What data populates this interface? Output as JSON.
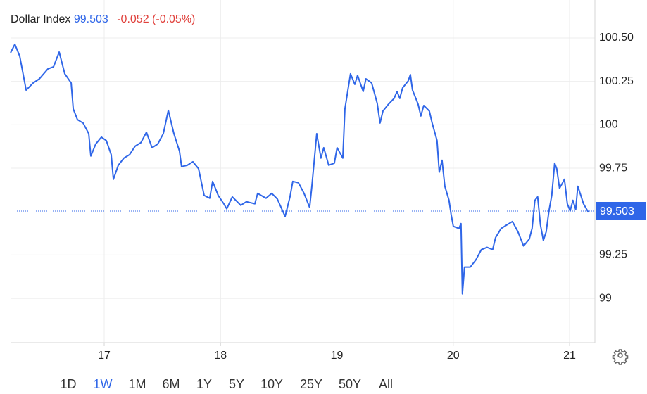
{
  "chart_data": {
    "type": "line",
    "name": "Dollar Index",
    "price": 99.503,
    "change": "-0.052 (-0.05%)",
    "color": "#2f66e8",
    "label_color": "#2f66e8",
    "x": [
      16.195,
      16.232,
      16.274,
      16.329,
      16.389,
      16.443,
      16.516,
      16.564,
      16.613,
      16.661,
      16.716,
      16.734,
      16.77,
      16.819,
      16.867,
      16.885,
      16.927,
      16.976,
      17.018,
      17.06,
      17.079,
      17.121,
      17.169,
      17.218,
      17.266,
      17.315,
      17.363,
      17.411,
      17.46,
      17.508,
      17.551,
      17.599,
      17.647,
      17.665,
      17.714,
      17.762,
      17.811,
      17.859,
      17.907,
      17.932,
      17.98,
      18.028,
      18.053,
      18.101,
      18.174,
      18.222,
      18.295,
      18.319,
      18.391,
      18.44,
      18.488,
      18.555,
      18.597,
      18.621,
      18.67,
      18.718,
      18.766,
      18.785,
      18.827,
      18.863,
      18.887,
      18.93,
      18.978,
      19.002,
      19.051,
      19.069,
      19.117,
      19.154,
      19.178,
      19.226,
      19.25,
      19.299,
      19.347,
      19.371,
      19.396,
      19.444,
      19.492,
      19.517,
      19.541,
      19.565,
      19.613,
      19.632,
      19.65,
      19.698,
      19.722,
      19.747,
      19.795,
      19.819,
      19.861,
      19.88,
      19.904,
      19.928,
      19.964,
      19.982,
      20.001,
      20.049,
      20.067,
      20.079,
      20.097,
      20.146,
      20.194,
      20.242,
      20.291,
      20.339,
      20.364,
      20.412,
      20.46,
      20.509,
      20.557,
      20.605,
      20.654,
      20.678,
      20.702,
      20.726,
      20.75,
      20.775,
      20.799,
      20.823,
      20.847,
      20.872,
      20.89,
      20.914,
      20.956,
      20.981,
      21.005,
      21.029,
      21.053,
      21.071,
      21.12,
      21.162
    ],
    "values": [
      100.415,
      100.464,
      100.395,
      100.2,
      100.241,
      100.265,
      100.322,
      100.334,
      100.419,
      100.294,
      100.241,
      100.091,
      100.03,
      100.01,
      99.949,
      99.82,
      99.889,
      99.929,
      99.909,
      99.828,
      99.686,
      99.767,
      99.808,
      99.828,
      99.877,
      99.897,
      99.957,
      99.868,
      99.889,
      99.949,
      100.083,
      99.949,
      99.848,
      99.759,
      99.767,
      99.787,
      99.747,
      99.593,
      99.577,
      99.674,
      99.593,
      99.545,
      99.516,
      99.585,
      99.536,
      99.557,
      99.545,
      99.605,
      99.577,
      99.605,
      99.573,
      99.472,
      99.585,
      99.674,
      99.666,
      99.605,
      99.524,
      99.646,
      99.949,
      99.808,
      99.868,
      99.767,
      99.779,
      99.868,
      99.808,
      100.091,
      100.294,
      100.233,
      100.285,
      100.192,
      100.265,
      100.241,
      100.123,
      100.01,
      100.079,
      100.119,
      100.152,
      100.192,
      100.152,
      100.213,
      100.253,
      100.289,
      100.2,
      100.119,
      100.051,
      100.111,
      100.079,
      100.01,
      99.909,
      99.727,
      99.796,
      99.646,
      99.565,
      99.484,
      99.415,
      99.403,
      99.431,
      99.026,
      99.18,
      99.18,
      99.221,
      99.281,
      99.294,
      99.281,
      99.35,
      99.403,
      99.423,
      99.443,
      99.383,
      99.302,
      99.342,
      99.403,
      99.565,
      99.585,
      99.423,
      99.334,
      99.383,
      99.504,
      99.593,
      99.779,
      99.747,
      99.634,
      99.686,
      99.545,
      99.504,
      99.565,
      99.512,
      99.646,
      99.545,
      99.496
    ],
    "xlim": [
      16.195,
      21.218
    ],
    "xticks": [
      17,
      18,
      19,
      20,
      21
    ],
    "ylim": [
      98.745,
      100.719
    ],
    "yticks": [
      99,
      99.25,
      99.75,
      100,
      100.25,
      {
        "value": 100.5,
        "label": "100.50"
      }
    ],
    "grid": true
  },
  "ranges": [
    "1D",
    "1W",
    "1M",
    "6M",
    "1Y",
    "5Y",
    "10Y",
    "25Y",
    "50Y",
    "All"
  ],
  "selected_range": "1W"
}
